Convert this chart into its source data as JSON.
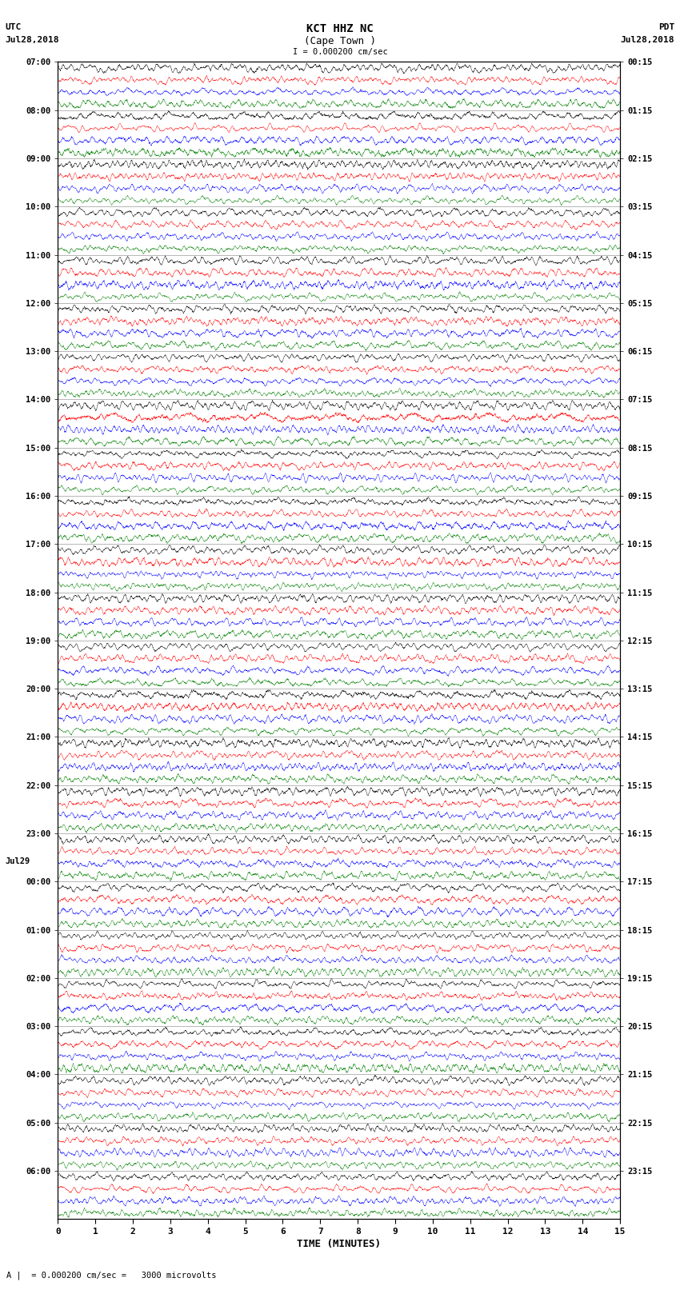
{
  "title_line1": "KCT HHZ NC",
  "title_line2": "(Cape Town )",
  "title_scale": "I = 0.000200 cm/sec",
  "left_label_line1": "UTC",
  "left_label_line2": "Jul28,2018",
  "right_label_line1": "PDT",
  "right_label_line2": "Jul28,2018",
  "bottom_label": "TIME (MINUTES)",
  "scale_label": "= 0.000200 cm/sec =   3000 microvolts",
  "xlabel_ticks": [
    0,
    1,
    2,
    3,
    4,
    5,
    6,
    7,
    8,
    9,
    10,
    11,
    12,
    13,
    14,
    15
  ],
  "left_times_labeled": [
    "07:00",
    "08:00",
    "09:00",
    "10:00",
    "11:00",
    "12:00",
    "13:00",
    "14:00",
    "15:00",
    "16:00",
    "17:00",
    "18:00",
    "19:00",
    "20:00",
    "21:00",
    "22:00",
    "23:00",
    "00:00",
    "01:00",
    "02:00",
    "03:00",
    "04:00",
    "05:00",
    "06:00"
  ],
  "right_times_labeled": [
    "00:15",
    "01:15",
    "02:15",
    "03:15",
    "04:15",
    "05:15",
    "06:15",
    "07:15",
    "08:15",
    "09:15",
    "10:15",
    "11:15",
    "12:15",
    "13:15",
    "14:15",
    "15:15",
    "16:15",
    "17:15",
    "18:15",
    "19:15",
    "20:15",
    "21:15",
    "22:15",
    "23:15"
  ],
  "colors": [
    "black",
    "red",
    "blue",
    "green"
  ],
  "n_hours": 24,
  "n_points": 4000,
  "bg_color": "white",
  "trace_amplitude": 0.45,
  "linewidth": 0.3
}
